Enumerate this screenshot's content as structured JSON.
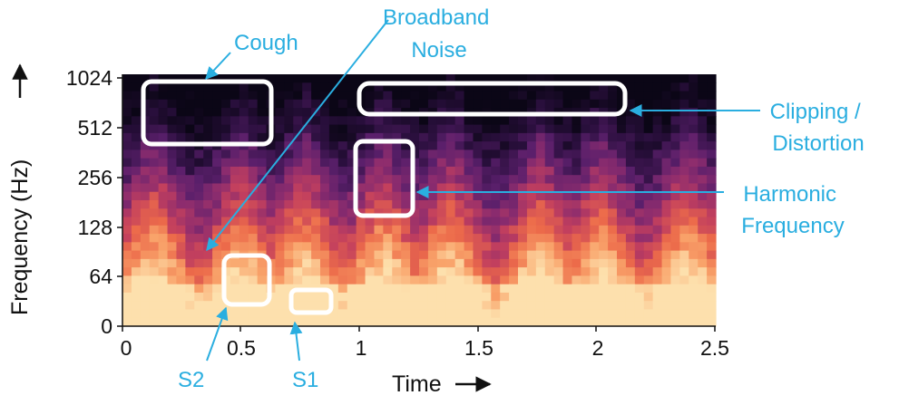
{
  "chart_data": {
    "type": "heatmap",
    "xlabel": "Time",
    "ylabel": "Frequency (Hz)",
    "xlim": [
      0,
      2.5
    ],
    "x_ticks": [
      "0",
      "0.5",
      "1",
      "1.5",
      "2",
      "2.5"
    ],
    "y_ticks": [
      "0",
      "64",
      "128",
      "256",
      "512",
      "1024"
    ],
    "y_scale": "log2",
    "colormap": [
      "#0b0616",
      "#2a0f3d",
      "#5a1f6b",
      "#8c2c6e",
      "#c23f5e",
      "#ec6a4a",
      "#f9a36a",
      "#fde0ad"
    ],
    "heartbeat_peaks_time": [
      0.13,
      0.5,
      0.77,
      1.1,
      1.38,
      1.76,
      2.02,
      2.38
    ],
    "annotations": [
      {
        "label": "Cough",
        "region": {
          "t": [
            0.1,
            0.6
          ],
          "f": [
            420,
            1024
          ]
        }
      },
      {
        "label": "Broadband\nNoise",
        "region": null
      },
      {
        "label": "Clipping /\nDistortion",
        "region": {
          "t": [
            1.0,
            2.1
          ],
          "f": [
            680,
            900
          ]
        }
      },
      {
        "label": "Harmonic\nFrequency",
        "region": {
          "t": [
            1.0,
            1.25
          ],
          "f": [
            165,
            360
          ]
        }
      },
      {
        "label": "S2",
        "region": {
          "t": [
            0.42,
            0.6
          ],
          "f": [
            50,
            90
          ]
        }
      },
      {
        "label": "S1",
        "region": {
          "t": [
            0.7,
            0.87
          ],
          "f": [
            26,
            40
          ]
        }
      }
    ],
    "annotation_color": "#2aaee0"
  }
}
